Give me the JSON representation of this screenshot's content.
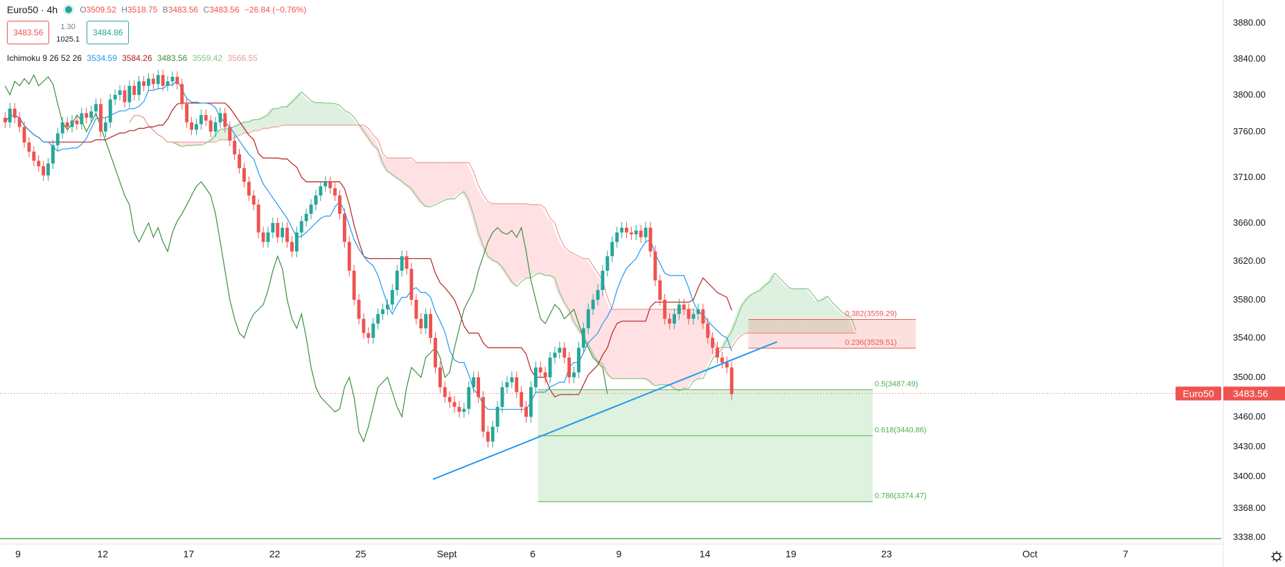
{
  "header": {
    "symbol": "Euro50",
    "interval": "4h",
    "ohlc": {
      "o": "3509.52",
      "h": "3518.75",
      "l": "3483.56",
      "c": "3483.56",
      "change": "−26.84 (−0.76%)"
    },
    "ohlc_prefix": {
      "o": "O",
      "h": "H",
      "l": "B",
      "c": "C"
    }
  },
  "trade": {
    "sell": "3483.56",
    "spread": "1.30",
    "volume": "1025.1",
    "buy": "3484.86"
  },
  "ichimoku": {
    "label": "Ichimoku 9 26 52 26",
    "values": [
      "3534.59",
      "3584.26",
      "3483.56",
      "3559.42",
      "3566.55"
    ],
    "colors": [
      "#2196f3",
      "#b71c1c",
      "#388e3c",
      "#81c784",
      "#ef9a9a"
    ]
  },
  "colors": {
    "up": "#26a69a",
    "down": "#ef5350",
    "trendline": "#2196f3",
    "fib_green": "#4caf50",
    "fib_red": "#ef5350"
  },
  "chart_data": {
    "type": "candlestick",
    "symbol_label": "Euro50",
    "last_price": 3483.56,
    "y_ticks": [
      3338,
      3368,
      3400,
      3430,
      3460,
      3500,
      3540,
      3580,
      3620,
      3660,
      3710,
      3760,
      3800,
      3840,
      3880
    ],
    "y_tick_labels": [
      "3338.00",
      "3368.00",
      "3400.00",
      "3430.00",
      "3460.00",
      "3500.00",
      "3540.00",
      "3580.00",
      "3620.00",
      "3660.00",
      "3710.00",
      "3760.00",
      "3800.00",
      "3840.00",
      "3880.00"
    ],
    "x_ticks": [
      {
        "label": "9",
        "bar": 0
      },
      {
        "label": "12",
        "bar": 18
      },
      {
        "label": "17",
        "bar": 36
      },
      {
        "label": "22",
        "bar": 54
      },
      {
        "label": "25",
        "bar": 72
      },
      {
        "label": "Sept",
        "bar": 90
      },
      {
        "label": "6",
        "bar": 108
      },
      {
        "label": "9",
        "bar": 126
      },
      {
        "label": "14",
        "bar": 144
      },
      {
        "label": "19",
        "bar": 162
      },
      {
        "label": "23",
        "bar": 182
      },
      {
        "label": "Oct",
        "bar": 212
      },
      {
        "label": "7",
        "bar": 232
      }
    ],
    "candles_close": [
      3770,
      3785,
      3775,
      3765,
      3748,
      3738,
      3728,
      3722,
      3712,
      3725,
      3745,
      3758,
      3770,
      3765,
      3772,
      3768,
      3780,
      3775,
      3782,
      3790,
      3760,
      3770,
      3795,
      3800,
      3805,
      3792,
      3810,
      3800,
      3815,
      3810,
      3818,
      3812,
      3822,
      3810,
      3815,
      3820,
      3812,
      3790,
      3770,
      3762,
      3768,
      3778,
      3772,
      3760,
      3770,
      3780,
      3765,
      3750,
      3735,
      3720,
      3705,
      3690,
      3680,
      3650,
      3640,
      3650,
      3660,
      3645,
      3655,
      3640,
      3630,
      3650,
      3662,
      3670,
      3680,
      3690,
      3700,
      3705,
      3698,
      3690,
      3670,
      3640,
      3610,
      3580,
      3560,
      3545,
      3540,
      3555,
      3565,
      3570,
      3575,
      3590,
      3610,
      3625,
      3612,
      3580,
      3560,
      3550,
      3565,
      3540,
      3510,
      3490,
      3480,
      3475,
      3470,
      3465,
      3468,
      3490,
      3500,
      3480,
      3445,
      3435,
      3450,
      3470,
      3490,
      3495,
      3500,
      3485,
      3470,
      3460,
      3490,
      3510,
      3505,
      3500,
      3520,
      3525,
      3530,
      3520,
      3500,
      3505,
      3530,
      3550,
      3570,
      3580,
      3590,
      3610,
      3625,
      3640,
      3650,
      3655,
      3650,
      3648,
      3652,
      3645,
      3655,
      3630,
      3600,
      3580,
      3560,
      3555,
      3565,
      3575,
      3570,
      3560,
      3565,
      3570,
      3555,
      3540,
      3530,
      3520,
      3515,
      3510,
      3483
    ],
    "ichimoku_cloud": {
      "span_a_color": "#81c784",
      "span_b_color": "#ef9a9a"
    },
    "trendline": {
      "from": {
        "bar": 90,
        "price": 3397
      },
      "to": {
        "bar": 162,
        "price": 3536
      }
    },
    "fib_levels": [
      {
        "label": "0.382(3559.29)",
        "price": 3559.29,
        "color": "#ef5350"
      },
      {
        "label": "0.236(3529.51)",
        "price": 3529.51,
        "color": "#ef5350"
      },
      {
        "label": "0.5(3487.49)",
        "price": 3487.49,
        "color": "#4caf50"
      },
      {
        "label": "0.618(3440.86)",
        "price": 3440.86,
        "color": "#4caf50"
      },
      {
        "label": "0.786(3374.47)",
        "price": 3374.47,
        "color": "#4caf50"
      }
    ],
    "fib_zones": [
      {
        "from_bar": 156,
        "to_bar": 191,
        "top": 3559.29,
        "bottom": 3529.51,
        "color": "#ef5350"
      },
      {
        "from_bar": 112,
        "to_bar": 182,
        "top": 3487.49,
        "bottom": 3374.47,
        "color": "#4caf50"
      }
    ]
  }
}
